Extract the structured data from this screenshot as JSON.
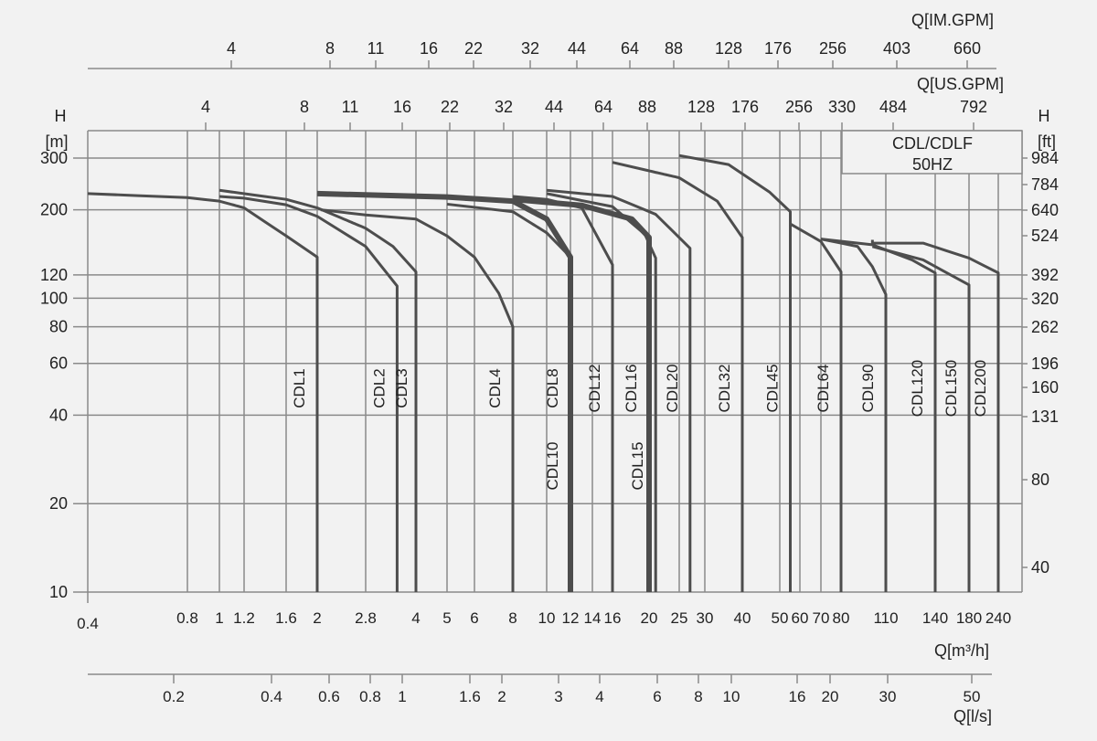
{
  "chart_data": {
    "type": "line",
    "legend_box": {
      "line1": "CDL/CDLF",
      "line2": "50HZ"
    },
    "y_axis_left": {
      "label": "H",
      "unit": "[m]",
      "scale": "log",
      "range": [
        10,
        330
      ],
      "ticks": [
        10,
        20,
        40,
        60,
        80,
        100,
        120,
        200,
        300
      ]
    },
    "y_axis_right": {
      "label": "H",
      "unit": "[ft]",
      "ticks": [
        40,
        80,
        131,
        160,
        196,
        262,
        320,
        392,
        524,
        640,
        784,
        984
      ]
    },
    "x_axis_m3h": {
      "label": "Q[m³/h]",
      "scale": "log",
      "range": [
        0.4,
        260
      ],
      "ticks": [
        "0.4",
        "0.8",
        "1",
        "1.2",
        "1.6",
        "2",
        "2.8",
        "4",
        "5",
        "6",
        "8",
        "10",
        "12",
        "14",
        "16",
        "20",
        "25",
        "30",
        "40",
        "50",
        "60",
        "70",
        "80",
        "110",
        "140",
        "180",
        "240"
      ]
    },
    "x_axis_ls": {
      "label": "Q[l/s]",
      "ticks": [
        "0.2",
        "0.4",
        "0.6",
        "0.8",
        "1",
        "1.6",
        "2",
        "3",
        "4",
        "6",
        "8",
        "10",
        "16",
        "20",
        "30",
        "50"
      ]
    },
    "x_axis_usgpm": {
      "label": "Q[US.GPM]",
      "ticks": [
        "4",
        "8",
        "11",
        "16",
        "22",
        "32",
        "44",
        "64",
        "88",
        "128",
        "176",
        "256",
        "330",
        "484",
        "792"
      ]
    },
    "x_axis_imgpm": {
      "label": "Q[IM.GPM]",
      "ticks": [
        "4",
        "8",
        "11",
        "16",
        "22",
        "32",
        "44",
        "64",
        "88",
        "128",
        "176",
        "256",
        "403",
        "660"
      ]
    },
    "grid": true,
    "series": [
      {
        "name": "CDL1",
        "points": [
          [
            0.4,
            227
          ],
          [
            0.8,
            220
          ],
          [
            1.0,
            214
          ],
          [
            1.2,
            203
          ],
          [
            1.6,
            163
          ],
          [
            2.0,
            138
          ]
        ]
      },
      {
        "name": "CDL2",
        "points": [
          [
            1.0,
            222
          ],
          [
            1.2,
            219
          ],
          [
            1.6,
            208
          ],
          [
            2.0,
            190
          ],
          [
            2.8,
            150
          ],
          [
            3.5,
            110
          ]
        ]
      },
      {
        "name": "CDL3",
        "points": [
          [
            1.0,
            233
          ],
          [
            1.6,
            217
          ],
          [
            2.0,
            203
          ],
          [
            2.8,
            173
          ],
          [
            3.4,
            150
          ],
          [
            4.0,
            123
          ]
        ]
      },
      {
        "name": "CDL4",
        "points": [
          [
            2.05,
            200
          ],
          [
            2.8,
            192
          ],
          [
            4.0,
            186
          ],
          [
            5.0,
            163
          ],
          [
            6.0,
            138
          ],
          [
            7.2,
            104
          ],
          [
            8.0,
            80
          ]
        ]
      },
      {
        "name": "CDL8",
        "thick": true,
        "points": [
          [
            2.0,
            227
          ],
          [
            5.0,
            221
          ],
          [
            8.0,
            214
          ],
          [
            10.0,
            186
          ],
          [
            12.0,
            138
          ]
        ]
      },
      {
        "name": "CDL10",
        "light": true,
        "points": [
          [
            5.0,
            209
          ],
          [
            8.0,
            197
          ],
          [
            10.0,
            167
          ],
          [
            12.0,
            138
          ]
        ]
      },
      {
        "name": "CDL12",
        "points": [
          [
            8.0,
            222
          ],
          [
            10.0,
            217
          ],
          [
            13.0,
            203
          ],
          [
            16.0,
            130
          ]
        ]
      },
      {
        "name": "CDL16",
        "thick": true,
        "points": [
          [
            8.0,
            217
          ],
          [
            13.0,
            207
          ],
          [
            18.0,
            186
          ],
          [
            20.0,
            161
          ]
        ]
      },
      {
        "name": "CDL15",
        "light": true,
        "points": [
          [
            10.0,
            227
          ],
          [
            16.0,
            205
          ],
          [
            19.5,
            165
          ],
          [
            21.0,
            137
          ]
        ]
      },
      {
        "name": "CDL20",
        "points": [
          [
            10.0,
            233
          ],
          [
            16.0,
            222
          ],
          [
            21.0,
            193
          ],
          [
            27.0,
            148
          ]
        ]
      },
      {
        "name": "CDL32",
        "points": [
          [
            16.0,
            290
          ],
          [
            25.0,
            257
          ],
          [
            33.0,
            214
          ],
          [
            40.0,
            161
          ]
        ]
      },
      {
        "name": "CDL45",
        "points": [
          [
            25.0,
            306
          ],
          [
            36.0,
            285
          ],
          [
            47.0,
            230
          ],
          [
            55.0,
            197
          ]
        ]
      },
      {
        "name": "CDL64",
        "points": [
          [
            55.0,
            179
          ],
          [
            70.0,
            156
          ],
          [
            80.0,
            123
          ]
        ]
      },
      {
        "name": "CDL90",
        "points": [
          [
            70.0,
            159
          ],
          [
            90.0,
            150
          ],
          [
            100.0,
            128
          ],
          [
            110.0,
            103
          ]
        ]
      },
      {
        "name": "CDL120",
        "points": [
          [
            70.0,
            159
          ],
          [
            100.0,
            152
          ],
          [
            125.0,
            135
          ],
          [
            140.0,
            122
          ]
        ]
      },
      {
        "name": "CDL150",
        "points": [
          [
            100.0,
            150
          ],
          [
            132.0,
            135
          ],
          [
            180.0,
            111
          ]
        ]
      },
      {
        "name": "CDL200",
        "points": [
          [
            100.0,
            158
          ],
          [
            100.0,
            154
          ],
          [
            132.0,
            154
          ],
          [
            180.0,
            137
          ],
          [
            240.0,
            122
          ]
        ]
      }
    ]
  },
  "colors": {
    "background": "#f2f2f2",
    "grid": "#8a8a8a",
    "curve": "#4d4d4d",
    "light_label": "#777777"
  }
}
